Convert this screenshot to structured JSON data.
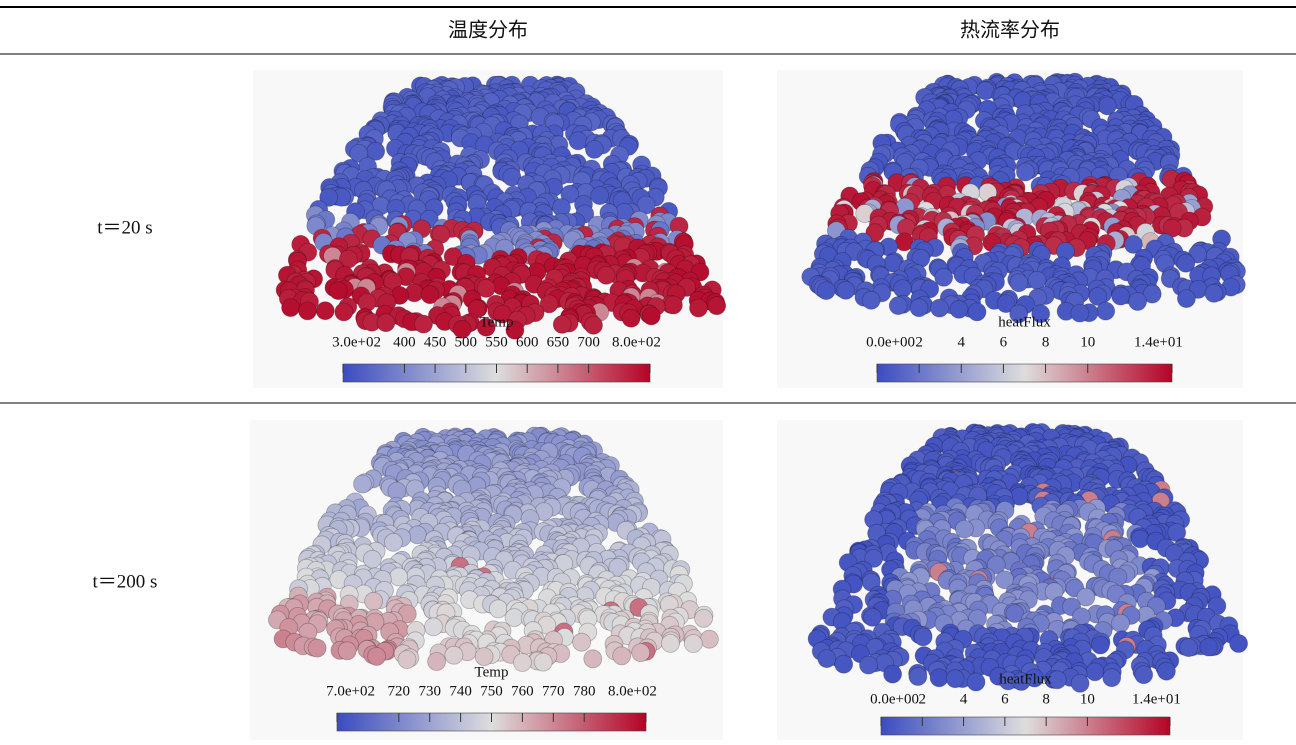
{
  "header": {
    "columns": [
      "温度分布",
      "热流率分布"
    ]
  },
  "rows": [
    {
      "label": "t＝20 s",
      "panels": [
        {
          "colorbar": {
            "title": "Temp",
            "ticks": [
              {
                "value": 300,
                "label": "3.0e+02"
              },
              400,
              450,
              500,
              550,
              600,
              650,
              700,
              {
                "value": 800,
                "label": "8.0e+02"
              }
            ]
          }
        },
        {
          "colorbar": {
            "title": "heatFlux",
            "ticks": [
              {
                "value": 0,
                "label": "0.0e+00"
              },
              2,
              4,
              6,
              8,
              10,
              {
                "value": 14,
                "label": "1.4e+01"
              }
            ]
          }
        }
      ]
    },
    {
      "label": "t＝200 s",
      "panels": [
        {
          "colorbar": {
            "title": "Temp",
            "ticks": [
              {
                "value": 700,
                "label": "7.0e+02"
              },
              720,
              730,
              740,
              750,
              760,
              770,
              780,
              {
                "value": 800,
                "label": "8.0e+02"
              }
            ]
          }
        },
        {
          "colorbar": {
            "title": "heatFlux",
            "ticks": [
              {
                "value": 0,
                "label": "0.0e+00"
              },
              2,
              4,
              6,
              8,
              10,
              {
                "value": 14,
                "label": "1.4e+01"
              }
            ]
          }
        }
      ]
    }
  ]
}
